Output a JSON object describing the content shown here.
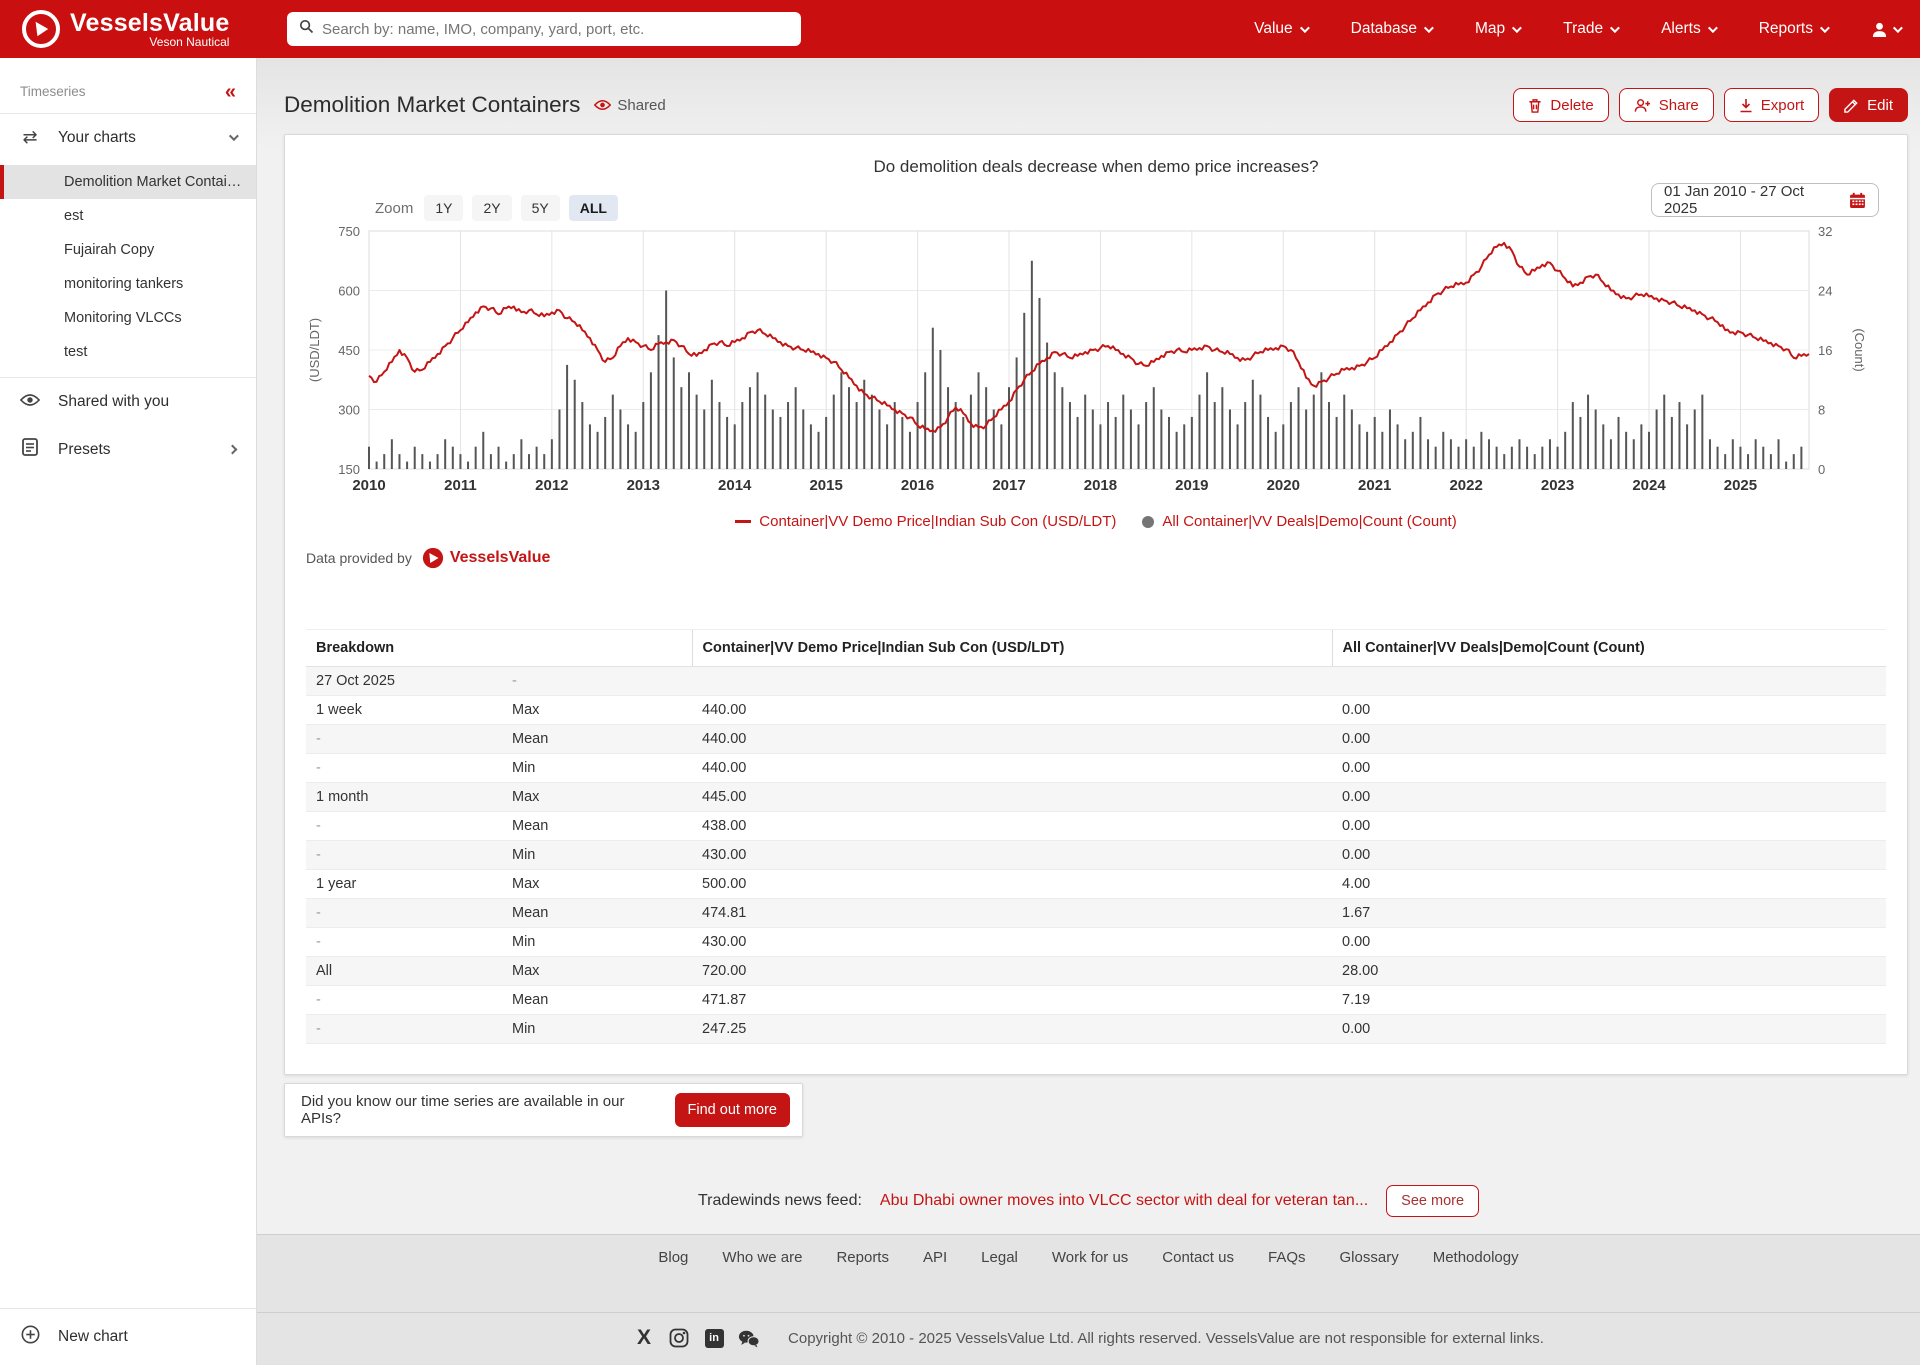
{
  "navbar": {
    "brand": {
      "name": "VesselsValue",
      "subtitle": "Veson Nautical"
    },
    "search_placeholder": "Search by: name, IMO, company, yard, port, etc.",
    "menu": [
      {
        "label": "Value"
      },
      {
        "label": "Database"
      },
      {
        "label": "Map"
      },
      {
        "label": "Trade"
      },
      {
        "label": "Alerts"
      },
      {
        "label": "Reports"
      }
    ]
  },
  "sidebar": {
    "section_label": "Timeseries",
    "collapse_glyph": "«",
    "your_charts_label": "Your charts",
    "items": [
      "Demolition Market Contain...",
      "est",
      "Fujairah Copy",
      "monitoring tankers",
      "Monitoring VLCCs",
      "test"
    ],
    "selected_index": 0,
    "shared_label": "Shared with you",
    "presets_label": "Presets",
    "new_chart_label": "New chart"
  },
  "header": {
    "title": "Demolition Market Containers",
    "shared_badge": "Shared",
    "buttons": {
      "delete": "Delete",
      "share": "Share",
      "export": "Export",
      "edit": "Edit"
    }
  },
  "chart": {
    "question_title": "Do demolition deals decrease when demo price increases?",
    "zoom_label": "Zoom",
    "zoom_options": [
      "1Y",
      "2Y",
      "5Y",
      "ALL"
    ],
    "zoom_selected": "ALL",
    "date_range": "01 Jan 2010 - 27 Oct 2025",
    "provided_by": "Data provided by",
    "brand": "VesselsValue",
    "legend": [
      {
        "label": "Container|VV Demo Price|Indian Sub Con (USD/LDT)",
        "marker": "red-line"
      },
      {
        "label": "All Container|VV Deals|Demo|Count (Count)",
        "marker": "gray-dot"
      }
    ]
  },
  "chart_data": {
    "type": "line",
    "title": "Do demolition deals decrease when demo price increases?",
    "x_axis": {
      "start_year": 2010,
      "step_months": 1,
      "tick_years": [
        2010,
        2011,
        2012,
        2013,
        2014,
        2015,
        2016,
        2017,
        2018,
        2019,
        2020,
        2021,
        2022,
        2023,
        2024,
        2025
      ]
    },
    "y_left": {
      "label": "(USD/LDT)",
      "min": 150,
      "max": 750,
      "ticks": [
        150,
        300,
        450,
        600,
        750
      ]
    },
    "y_right": {
      "label": "(Count)",
      "min": 0,
      "max": 32,
      "ticks": [
        0,
        8,
        16,
        24,
        32
      ]
    },
    "grid": true,
    "legend_position": "bottom",
    "series": [
      {
        "name": "Container|VV Demo Price|Indian Sub Con (USD/LDT)",
        "type": "line",
        "axis": "left",
        "color": "#c51414",
        "values": [
          385,
          370,
          395,
          420,
          450,
          430,
          395,
          400,
          420,
          440,
          460,
          480,
          500,
          520,
          545,
          560,
          555,
          540,
          555,
          560,
          545,
          550,
          540,
          535,
          545,
          550,
          530,
          520,
          500,
          480,
          450,
          420,
          430,
          460,
          480,
          470,
          460,
          450,
          465,
          470,
          475,
          460,
          440,
          435,
          450,
          465,
          470,
          460,
          470,
          480,
          495,
          500,
          490,
          480,
          470,
          460,
          455,
          450,
          445,
          440,
          430,
          420,
          400,
          380,
          360,
          340,
          330,
          320,
          310,
          300,
          290,
          280,
          260,
          250,
          247,
          255,
          280,
          305,
          290,
          265,
          255,
          260,
          280,
          300,
          320,
          350,
          375,
          395,
          415,
          430,
          445,
          440,
          430,
          435,
          445,
          450,
          455,
          460,
          450,
          440,
          430,
          415,
          410,
          420,
          435,
          445,
          450,
          445,
          450,
          455,
          460,
          450,
          445,
          440,
          430,
          425,
          435,
          445,
          450,
          455,
          460,
          450,
          420,
          380,
          360,
          370,
          380,
          390,
          400,
          405,
          410,
          420,
          430,
          450,
          470,
          490,
          510,
          530,
          550,
          570,
          590,
          600,
          610,
          615,
          620,
          640,
          660,
          690,
          710,
          720,
          700,
          660,
          640,
          650,
          665,
          670,
          650,
          630,
          610,
          620,
          635,
          640,
          620,
          600,
          590,
          580,
          585,
          590,
          585,
          580,
          575,
          570,
          560,
          555,
          550,
          540,
          530,
          520,
          500,
          495,
          495,
          488,
          480,
          473,
          468,
          460,
          452,
          430,
          435,
          440
        ]
      },
      {
        "name": "All Container|VV Deals|Demo|Count (Count)",
        "type": "bar",
        "axis": "right",
        "color": "#555555",
        "values": [
          3,
          1,
          2,
          4,
          2,
          1,
          3,
          2,
          1,
          2,
          4,
          3,
          2,
          1,
          3,
          5,
          2,
          3,
          1,
          2,
          4,
          2,
          3,
          2,
          4,
          8,
          14,
          12,
          9,
          6,
          5,
          7,
          10,
          8,
          6,
          5,
          9,
          13,
          18,
          24,
          15,
          11,
          13,
          10,
          8,
          12,
          9,
          7,
          6,
          9,
          11,
          13,
          10,
          8,
          7,
          9,
          11,
          8,
          6,
          5,
          7,
          10,
          13,
          11,
          9,
          12,
          10,
          8,
          6,
          9,
          7,
          5,
          9,
          13,
          19,
          16,
          11,
          9,
          7,
          10,
          13,
          11,
          8,
          6,
          11,
          15,
          21,
          28,
          23,
          17,
          13,
          11,
          9,
          7,
          10,
          8,
          6,
          9,
          7,
          10,
          8,
          6,
          9,
          11,
          8,
          7,
          5,
          6,
          7,
          10,
          13,
          9,
          11,
          8,
          6,
          9,
          12,
          10,
          7,
          5,
          6,
          9,
          11,
          8,
          10,
          13,
          9,
          7,
          10,
          8,
          6,
          5,
          7,
          5,
          8,
          6,
          4,
          5,
          7,
          4,
          3,
          5,
          4,
          3,
          4,
          3,
          5,
          4,
          3,
          2,
          3,
          4,
          3,
          2,
          3,
          4,
          3,
          5,
          9,
          7,
          10,
          8,
          6,
          4,
          7,
          5,
          4,
          6,
          5,
          8,
          10,
          7,
          9,
          6,
          8,
          10,
          4,
          3,
          2,
          4,
          3,
          2,
          4,
          3,
          2,
          4,
          1,
          2,
          3,
          0
        ]
      }
    ]
  },
  "table": {
    "columns": [
      "Breakdown",
      "Container|VV Demo Price|Indian Sub Con (USD/LDT)",
      "All Container|VV Deals|Demo|Count (Count)"
    ],
    "rows": [
      [
        "27 Oct 2025",
        "-",
        "",
        ""
      ],
      [
        "1 week",
        "Max",
        "440.00",
        "0.00"
      ],
      [
        "-",
        "Mean",
        "440.00",
        "0.00"
      ],
      [
        "-",
        "Min",
        "440.00",
        "0.00"
      ],
      [
        "1 month",
        "Max",
        "445.00",
        "0.00"
      ],
      [
        "-",
        "Mean",
        "438.00",
        "0.00"
      ],
      [
        "-",
        "Min",
        "430.00",
        "0.00"
      ],
      [
        "1 year",
        "Max",
        "500.00",
        "4.00"
      ],
      [
        "-",
        "Mean",
        "474.81",
        "1.67"
      ],
      [
        "-",
        "Min",
        "430.00",
        "0.00"
      ],
      [
        "All",
        "Max",
        "720.00",
        "28.00"
      ],
      [
        "-",
        "Mean",
        "471.87",
        "7.19"
      ],
      [
        "-",
        "Min",
        "247.25",
        "0.00"
      ]
    ]
  },
  "api_promo": {
    "text": "Did you know our time series are available in our APIs?",
    "button": "Find out more"
  },
  "news": {
    "label": "Tradewinds news feed:",
    "headline": "Abu Dhabi owner moves into VLCC sector with deal for veteran tan...",
    "button": "See more"
  },
  "footer": {
    "links": [
      "Blog",
      "Who we are",
      "Reports",
      "API",
      "Legal",
      "Work for us",
      "Contact us",
      "FAQs",
      "Glossary",
      "Methodology"
    ],
    "social": [
      "x",
      "instagram",
      "linkedin",
      "wechat"
    ],
    "copyright": "Copyright © 2010 - 2025 VesselsValue Ltd. All rights reserved. VesselsValue are not responsible for external links."
  },
  "colors": {
    "navbar_red": "#c90f0f",
    "accent_red": "#c51414",
    "bar_gray": "#555555",
    "selected_zoom_bg": "#e2e8f2"
  }
}
